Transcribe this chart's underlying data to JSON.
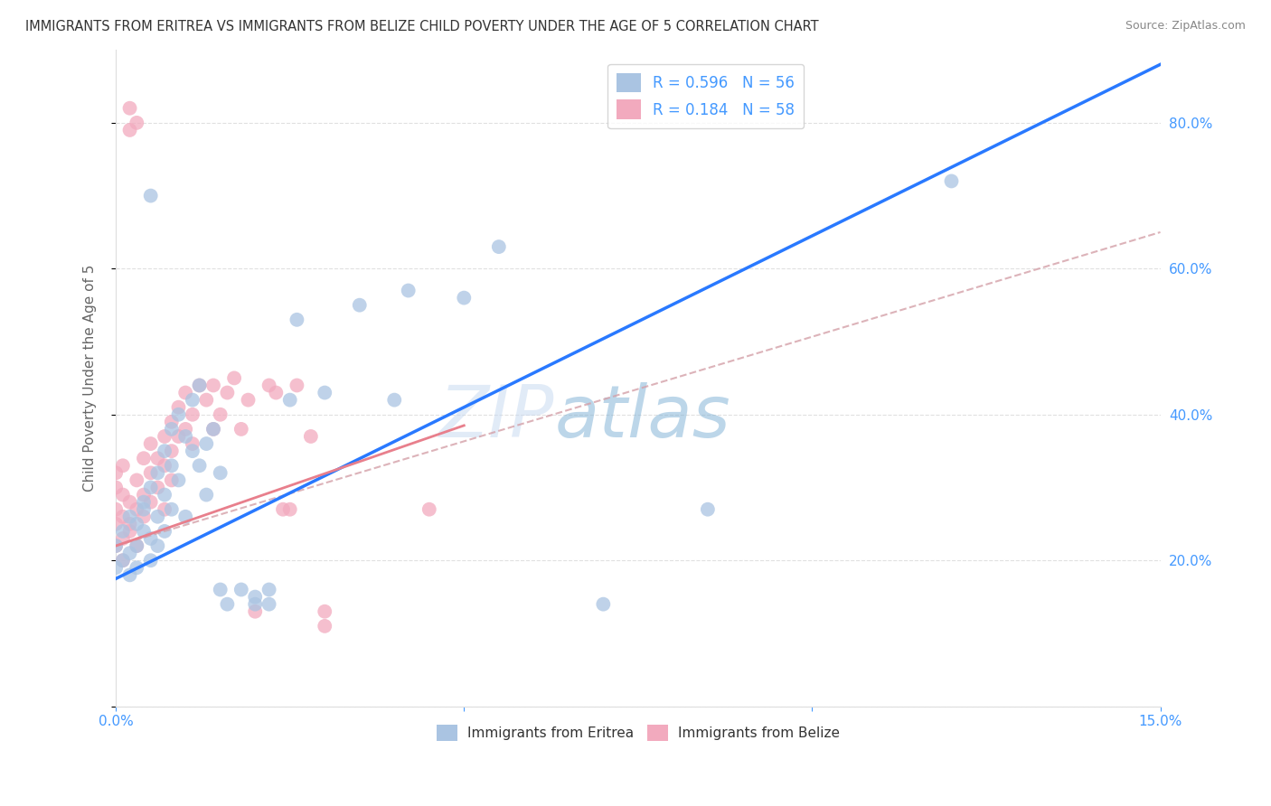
{
  "title": "IMMIGRANTS FROM ERITREA VS IMMIGRANTS FROM BELIZE CHILD POVERTY UNDER THE AGE OF 5 CORRELATION CHART",
  "source": "Source: ZipAtlas.com",
  "ylabel": "Child Poverty Under the Age of 5",
  "xlim": [
    0.0,
    0.15
  ],
  "ylim": [
    0.0,
    0.9
  ],
  "xtick_vals": [
    0.0,
    0.05,
    0.1,
    0.15
  ],
  "xtick_labels": [
    "0.0%",
    "",
    "",
    "15.0%"
  ],
  "yticks_right": [
    0.0,
    0.2,
    0.4,
    0.6,
    0.8
  ],
  "ytick_labels_right": [
    "",
    "20.0%",
    "40.0%",
    "60.0%",
    "80.0%"
  ],
  "watermark": "ZIPatlas",
  "legend_label1": "Immigrants from Eritrea",
  "legend_label2": "Immigrants from Belize",
  "color_eritrea": "#aac4e2",
  "color_belize": "#f2aabe",
  "line_color_eritrea": "#2979ff",
  "line_color_belize": "#e87f8c",
  "dash_line_color": "#d4a0a8",
  "background_color": "#ffffff",
  "grid_color": "#e0e0e0",
  "axis_color": "#4499ff",
  "title_color": "#333333",
  "blue_line_x0": 0.0,
  "blue_line_y0": 0.175,
  "blue_line_x1": 0.15,
  "blue_line_y1": 0.88,
  "pink_line_x0": 0.0,
  "pink_line_y0": 0.22,
  "pink_line_x1": 0.05,
  "pink_line_y1": 0.385,
  "dash_line_x0": 0.0,
  "dash_line_y0": 0.22,
  "dash_line_x1": 0.15,
  "dash_line_y1": 0.65,
  "eritrea_pts": [
    [
      0.0,
      0.19
    ],
    [
      0.0,
      0.22
    ],
    [
      0.001,
      0.2
    ],
    [
      0.001,
      0.24
    ],
    [
      0.002,
      0.21
    ],
    [
      0.002,
      0.26
    ],
    [
      0.002,
      0.18
    ],
    [
      0.003,
      0.25
    ],
    [
      0.003,
      0.22
    ],
    [
      0.003,
      0.19
    ],
    [
      0.004,
      0.27
    ],
    [
      0.004,
      0.24
    ],
    [
      0.004,
      0.28
    ],
    [
      0.005,
      0.3
    ],
    [
      0.005,
      0.23
    ],
    [
      0.005,
      0.2
    ],
    [
      0.006,
      0.32
    ],
    [
      0.006,
      0.26
    ],
    [
      0.006,
      0.22
    ],
    [
      0.007,
      0.35
    ],
    [
      0.007,
      0.29
    ],
    [
      0.007,
      0.24
    ],
    [
      0.008,
      0.38
    ],
    [
      0.008,
      0.33
    ],
    [
      0.008,
      0.27
    ],
    [
      0.009,
      0.4
    ],
    [
      0.009,
      0.31
    ],
    [
      0.01,
      0.37
    ],
    [
      0.01,
      0.26
    ],
    [
      0.011,
      0.42
    ],
    [
      0.011,
      0.35
    ],
    [
      0.012,
      0.44
    ],
    [
      0.012,
      0.33
    ],
    [
      0.013,
      0.36
    ],
    [
      0.013,
      0.29
    ],
    [
      0.014,
      0.38
    ],
    [
      0.015,
      0.32
    ],
    [
      0.015,
      0.16
    ],
    [
      0.016,
      0.14
    ],
    [
      0.018,
      0.16
    ],
    [
      0.02,
      0.14
    ],
    [
      0.02,
      0.15
    ],
    [
      0.022,
      0.16
    ],
    [
      0.022,
      0.14
    ],
    [
      0.025,
      0.42
    ],
    [
      0.026,
      0.53
    ],
    [
      0.03,
      0.43
    ],
    [
      0.035,
      0.55
    ],
    [
      0.04,
      0.42
    ],
    [
      0.042,
      0.57
    ],
    [
      0.05,
      0.56
    ],
    [
      0.055,
      0.63
    ],
    [
      0.07,
      0.14
    ],
    [
      0.085,
      0.27
    ],
    [
      0.12,
      0.72
    ],
    [
      0.005,
      0.7
    ]
  ],
  "belize_pts": [
    [
      0.0,
      0.22
    ],
    [
      0.0,
      0.25
    ],
    [
      0.0,
      0.27
    ],
    [
      0.0,
      0.3
    ],
    [
      0.0,
      0.32
    ],
    [
      0.001,
      0.23
    ],
    [
      0.001,
      0.26
    ],
    [
      0.001,
      0.29
    ],
    [
      0.001,
      0.33
    ],
    [
      0.001,
      0.2
    ],
    [
      0.002,
      0.25
    ],
    [
      0.002,
      0.28
    ],
    [
      0.002,
      0.24
    ],
    [
      0.002,
      0.79
    ],
    [
      0.002,
      0.82
    ],
    [
      0.003,
      0.27
    ],
    [
      0.003,
      0.31
    ],
    [
      0.003,
      0.22
    ],
    [
      0.003,
      0.8
    ],
    [
      0.004,
      0.29
    ],
    [
      0.004,
      0.34
    ],
    [
      0.004,
      0.26
    ],
    [
      0.005,
      0.32
    ],
    [
      0.005,
      0.36
    ],
    [
      0.005,
      0.28
    ],
    [
      0.006,
      0.34
    ],
    [
      0.006,
      0.3
    ],
    [
      0.007,
      0.37
    ],
    [
      0.007,
      0.33
    ],
    [
      0.007,
      0.27
    ],
    [
      0.008,
      0.39
    ],
    [
      0.008,
      0.35
    ],
    [
      0.008,
      0.31
    ],
    [
      0.009,
      0.41
    ],
    [
      0.009,
      0.37
    ],
    [
      0.01,
      0.43
    ],
    [
      0.01,
      0.38
    ],
    [
      0.011,
      0.4
    ],
    [
      0.011,
      0.36
    ],
    [
      0.012,
      0.44
    ],
    [
      0.013,
      0.42
    ],
    [
      0.014,
      0.38
    ],
    [
      0.014,
      0.44
    ],
    [
      0.015,
      0.4
    ],
    [
      0.016,
      0.43
    ],
    [
      0.017,
      0.45
    ],
    [
      0.018,
      0.38
    ],
    [
      0.019,
      0.42
    ],
    [
      0.02,
      0.13
    ],
    [
      0.022,
      0.44
    ],
    [
      0.023,
      0.43
    ],
    [
      0.024,
      0.27
    ],
    [
      0.025,
      0.27
    ],
    [
      0.026,
      0.44
    ],
    [
      0.028,
      0.37
    ],
    [
      0.03,
      0.11
    ],
    [
      0.03,
      0.13
    ],
    [
      0.045,
      0.27
    ]
  ]
}
